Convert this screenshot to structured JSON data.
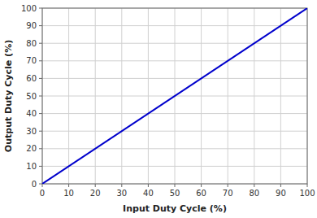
{
  "chart_data": {
    "type": "line",
    "xlabel": "Input Duty Cycle (%)",
    "ylabel": "Output Duty Cycle (%)",
    "x": [
      0,
      100
    ],
    "values": [
      0,
      100
    ],
    "color": "#0000cc",
    "xlim": [
      0,
      100
    ],
    "ylim": [
      0,
      100
    ],
    "xticks": [
      0,
      10,
      20,
      30,
      40,
      50,
      60,
      70,
      80,
      90,
      100
    ],
    "yticks": [
      0,
      10,
      20,
      30,
      40,
      50,
      60,
      70,
      80,
      90,
      100
    ],
    "grid": true
  }
}
